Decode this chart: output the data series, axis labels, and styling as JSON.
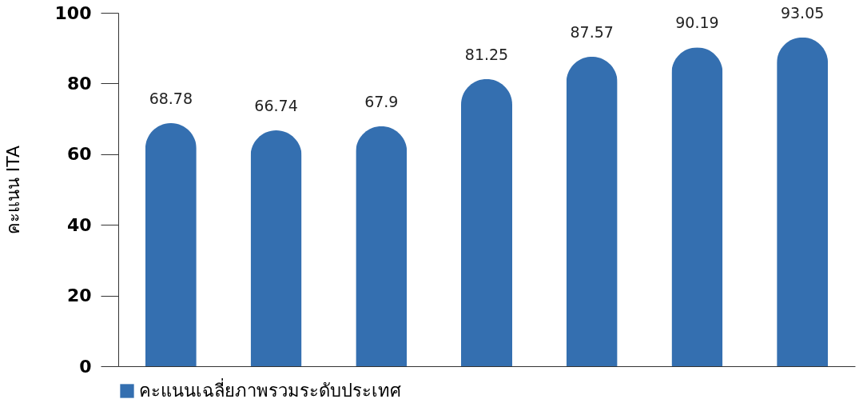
{
  "chart_data": {
    "type": "bar",
    "ylabel": "คะแนน ITA",
    "categories": [
      null,
      null,
      null,
      null,
      null,
      null,
      null
    ],
    "series": [
      {
        "name": "คะแนนเฉลี่ยภาพรวมระดับประเทศ",
        "color": "#346fb0",
        "values": [
          68.78,
          66.74,
          67.9,
          81.25,
          87.57,
          90.19,
          93.05
        ]
      }
    ],
    "ylim": [
      0,
      100
    ],
    "yticks": [
      0,
      20,
      40,
      60,
      80,
      100
    ],
    "grid": false,
    "legend": "bottom",
    "data_labels": true
  }
}
